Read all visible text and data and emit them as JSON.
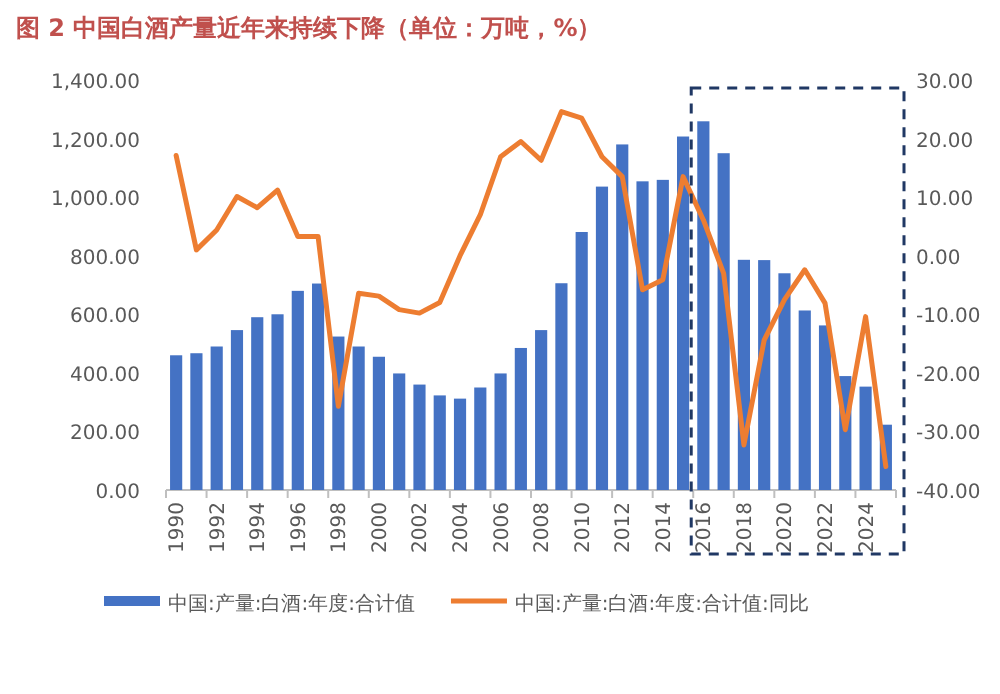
{
  "chart_data": {
    "type": "bar",
    "title": "图 2  中国白酒产量近年来持续下降（单位：万吨，%）",
    "categories": [
      "1990",
      null,
      "1992",
      null,
      "1994",
      null,
      "1996",
      null,
      "1998",
      null,
      "2000",
      null,
      "2002",
      null,
      "2004",
      null,
      "2006",
      null,
      "2008",
      null,
      "2010",
      null,
      "2012",
      null,
      "2014",
      null,
      "2016",
      null,
      "2018",
      null,
      "2020",
      null,
      "2022",
      null,
      "2024",
      null
    ],
    "series": [
      {
        "name": "中国:产量:白酒:年度:合计值",
        "color": "#4472c4",
        "values": [
          460,
          467,
          490,
          546,
          590,
          600,
          680,
          705,
          524,
          490,
          455,
          398,
          360,
          323,
          312,
          350,
          398,
          485,
          546,
          706,
          881,
          1036,
          1180,
          1054,
          1059,
          1207,
          1259,
          1150,
          786,
          785,
          740,
          613,
          562,
          389,
          353,
          223
        ]
      },
      {
        "name": "中国:产量:白酒:年度:合计值:同比",
        "type": "line",
        "axis": "y2",
        "color": "#ed7d31",
        "values": [
          17.1,
          1.0,
          4.4,
          10.1,
          8.2,
          11.2,
          3.3,
          3.3,
          -25.7,
          -6.4,
          -6.9,
          -9.2,
          -9.8,
          -8,
          0,
          7,
          16.9,
          19.5,
          16.3,
          24.6,
          23.5,
          16.9,
          13.5,
          -5.8,
          -4.1,
          13.5,
          6.1,
          -3.0,
          -32.3,
          -14.4,
          -7.5,
          -2.4,
          -8.1,
          -29.7,
          -10.4,
          -36
        ]
      }
    ],
    "ylim": [
      0,
      1400
    ],
    "yticks": [
      {
        "value": 0,
        "label": "0.00"
      },
      {
        "value": 200,
        "label": "200.00"
      },
      {
        "value": 400,
        "label": "400.00"
      },
      {
        "value": 600,
        "label": "600.00"
      },
      {
        "value": 800,
        "label": "800.00"
      },
      {
        "value": 1000,
        "label": "1,000.00"
      },
      {
        "value": 1200,
        "label": "1,200.00"
      },
      {
        "value": 1400,
        "label": "1,400.00"
      }
    ],
    "y2lim": [
      -40,
      30
    ],
    "y2ticks": [
      {
        "value": -40,
        "label": "-40.00"
      },
      {
        "value": -30,
        "label": "-30.00"
      },
      {
        "value": -20,
        "label": "-20.00"
      },
      {
        "value": -10,
        "label": "-10.00"
      },
      {
        "value": 0,
        "label": "0.00"
      },
      {
        "value": 10,
        "label": "10.00"
      },
      {
        "value": 20,
        "label": "20.00"
      },
      {
        "value": 30,
        "label": "30.00"
      }
    ],
    "legend": "bottom"
  }
}
